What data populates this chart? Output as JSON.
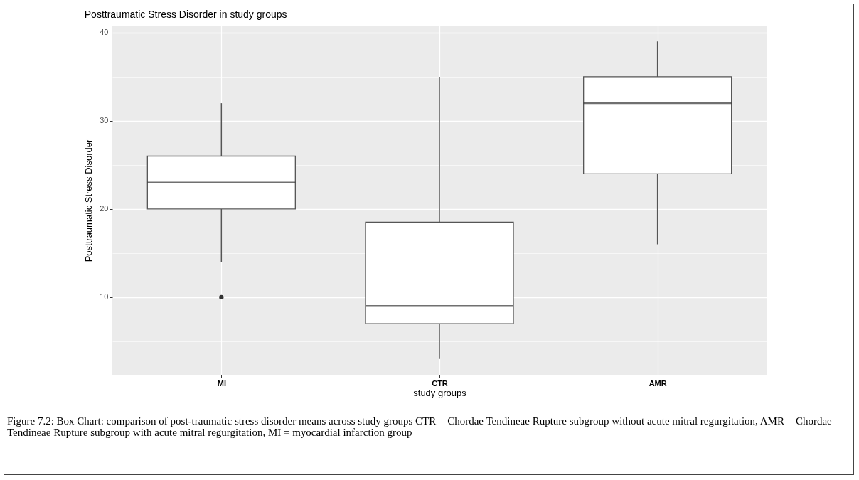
{
  "chart_data": {
    "type": "box",
    "title": "Posttraumatic Stress Disorder in study groups",
    "xlabel": "study groups",
    "ylabel": "Posttraumatic Stress Disorder",
    "categories": [
      "MI",
      "CTR",
      "AMR"
    ],
    "boxes": [
      {
        "low": 14,
        "q1": 20,
        "median": 23,
        "q3": 26,
        "high": 32,
        "outliers": [
          10
        ]
      },
      {
        "low": 3,
        "q1": 7,
        "median": 9,
        "q3": 18.5,
        "high": 35
      },
      {
        "low": 16,
        "q1": 24,
        "median": 32,
        "q3": 35,
        "high": 39
      }
    ],
    "ylim": [
      1.2,
      40.8
    ],
    "yticks": [
      {
        "value": 5,
        "label": null
      },
      10,
      {
        "value": 15,
        "label": null
      },
      20,
      {
        "value": 25,
        "label": null
      },
      30,
      {
        "value": 35,
        "label": null
      },
      40
    ],
    "grid": true,
    "annotations": [
      "Figure 7.2: Box Chart: comparison of post-traumatic stress disorder means across study groups CTR = Chordae Tendineae Rupture subgroup without acute mitral regurgitation, AMR = Chordae Tendineae Rupture subgroup with acute mitral regurgitation, MI = myocardial infarction group"
    ]
  }
}
